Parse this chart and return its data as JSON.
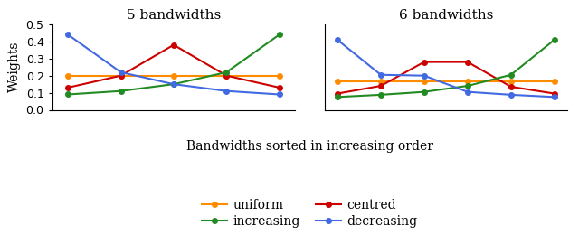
{
  "title_left": "5 bandwidths",
  "title_right": "6 bandwidths",
  "xlabel": "Bandwidths sorted in increasing order",
  "ylabel": "Weights",
  "ylim": [
    0.0,
    0.5
  ],
  "yticks": [
    0.0,
    0.1,
    0.2,
    0.3,
    0.4,
    0.5
  ],
  "panel5": {
    "x": [
      1,
      2,
      3,
      4,
      5
    ],
    "uniform": [
      0.2,
      0.2,
      0.2,
      0.2,
      0.2
    ],
    "centred": [
      0.13,
      0.2,
      0.38,
      0.2,
      0.13
    ],
    "increasing": [
      0.09,
      0.11,
      0.15,
      0.22,
      0.44
    ],
    "decreasing": [
      0.44,
      0.22,
      0.15,
      0.11,
      0.09
    ]
  },
  "panel6": {
    "x": [
      1,
      2,
      3,
      4,
      5,
      6
    ],
    "uniform": [
      0.167,
      0.167,
      0.167,
      0.167,
      0.167,
      0.167
    ],
    "centred": [
      0.095,
      0.14,
      0.28,
      0.28,
      0.135,
      0.095
    ],
    "increasing": [
      0.075,
      0.088,
      0.105,
      0.14,
      0.205,
      0.41
    ],
    "decreasing": [
      0.41,
      0.205,
      0.2,
      0.105,
      0.088,
      0.075
    ]
  },
  "colors": {
    "uniform": "#FF8C00",
    "centred": "#CC0000",
    "increasing": "#228B22",
    "decreasing": "#4169E1"
  },
  "marker": "o",
  "markersize": 4,
  "linewidth": 1.5,
  "title_fontsize": 11,
  "label_fontsize": 10,
  "tick_fontsize": 9
}
